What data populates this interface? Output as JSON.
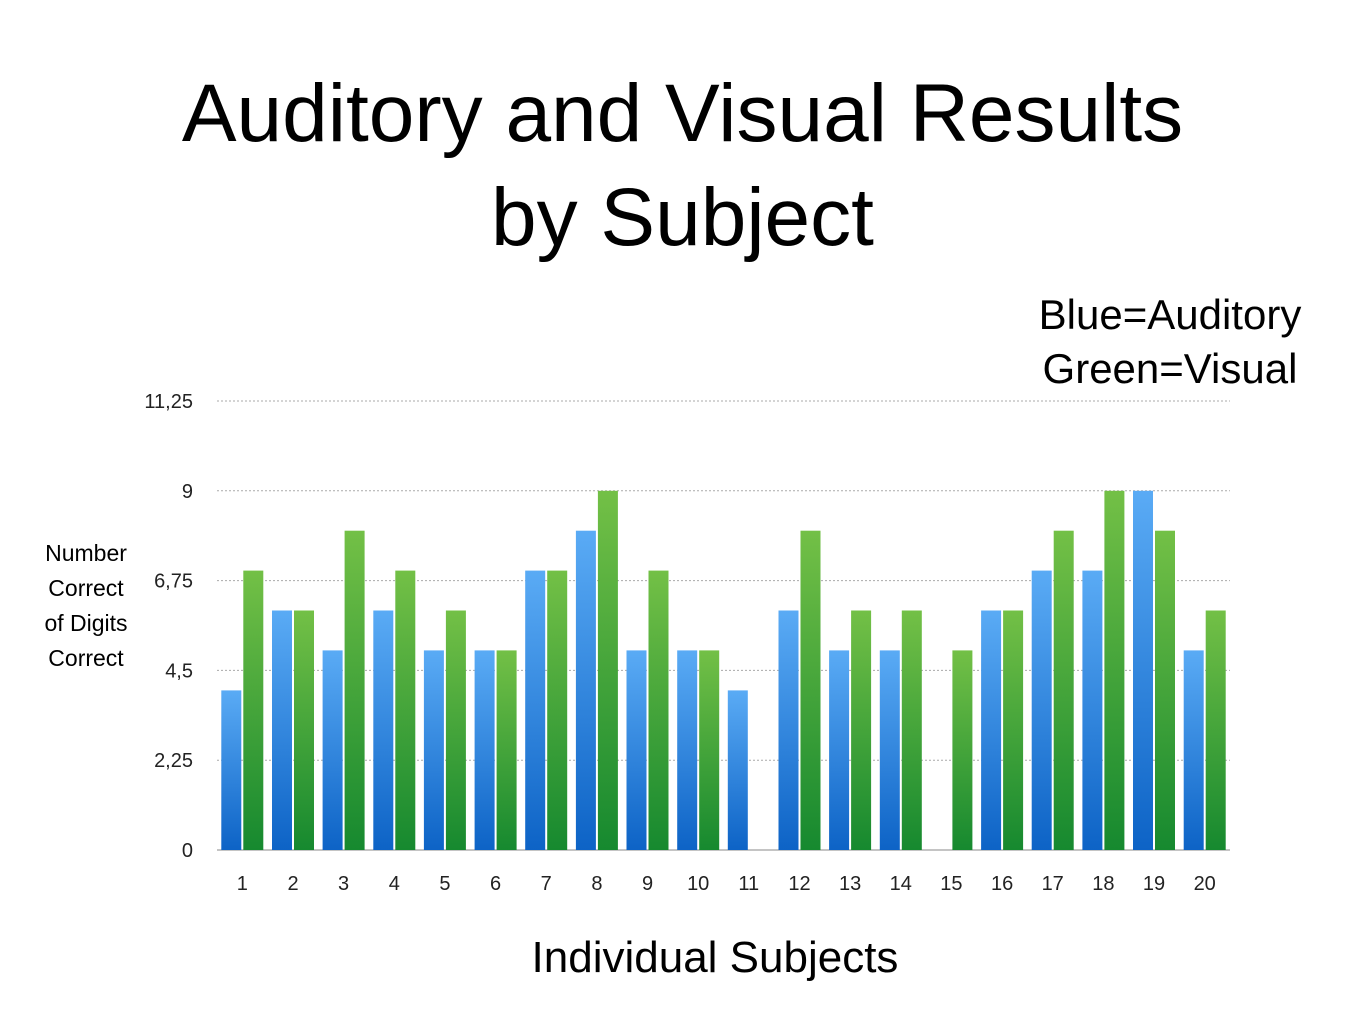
{
  "title_lines": [
    "Auditory and Visual Results",
    "by Subject"
  ],
  "legend_note_lines": [
    "Blue=Auditory",
    "Green=Visual"
  ],
  "ylabel_lines": [
    "Number",
    "Correct",
    "of Digits",
    "Correct"
  ],
  "xlabel": "Individual Subjects",
  "colors": {
    "auditory_top": "#5aabf5",
    "auditory_bottom": "#0d63c6",
    "visual_top": "#73c046",
    "visual_bottom": "#16892f",
    "grid": "#aaaaaa"
  },
  "chart_data": {
    "type": "bar",
    "title": "Auditory and Visual Results by Subject",
    "xlabel": "Individual Subjects",
    "ylabel": "Number Correct of Digits Correct",
    "categories": [
      "1",
      "2",
      "3",
      "4",
      "5",
      "6",
      "7",
      "8",
      "9",
      "10",
      "11",
      "12",
      "13",
      "14",
      "15",
      "16",
      "17",
      "18",
      "19",
      "20"
    ],
    "series": [
      {
        "name": "Auditory",
        "color": "blue",
        "values": [
          4,
          6,
          5,
          6,
          5,
          5,
          7,
          8,
          5,
          5,
          4,
          6,
          5,
          5,
          0,
          6,
          7,
          7,
          9,
          5
        ]
      },
      {
        "name": "Visual",
        "color": "green",
        "values": [
          7,
          6,
          8,
          7,
          6,
          5,
          7,
          9,
          7,
          5,
          0,
          8,
          6,
          6,
          5,
          6,
          8,
          9,
          8,
          6
        ]
      }
    ],
    "ylim": [
      0,
      11.25
    ],
    "yticks": [
      "0",
      "2,25",
      "4,5",
      "6,75",
      "9",
      "11,25"
    ],
    "ytick_values": [
      0,
      2.25,
      4.5,
      6.75,
      9,
      11.25
    ],
    "grid": true
  }
}
